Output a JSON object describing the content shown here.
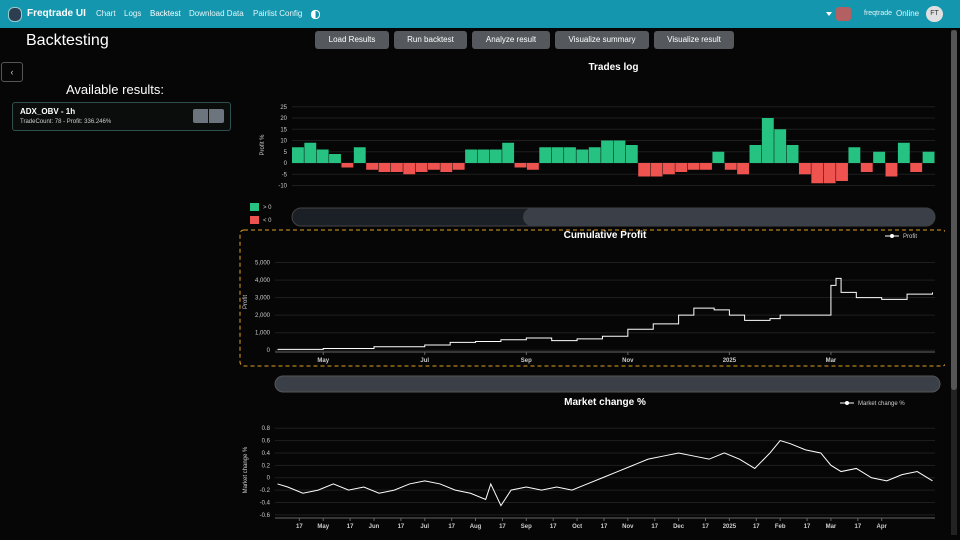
{
  "nav": {
    "brand": "Freqtrade UI",
    "links": [
      "Chart",
      "Logs",
      "Backtest",
      "Download Data",
      "Pairlist Config"
    ],
    "user": "freqtrade",
    "status": "Online",
    "avatar": "FT"
  },
  "page_title": "Backtesting",
  "buttons": [
    "Load Results",
    "Run backtest",
    "Analyze result",
    "Visualize summary",
    "Visualize result"
  ],
  "sidebar": {
    "heading": "Available results:",
    "results": [
      {
        "name": "ADX_OBV - 1h",
        "details": "TradeCount: 78 - Profit: 336.246%"
      }
    ]
  },
  "chart_data": [
    {
      "type": "bar",
      "title": "Trades log",
      "y_label": "Profit %",
      "values": [
        7,
        9,
        6,
        4,
        -2,
        7,
        -3,
        -4,
        -4,
        -5,
        -4,
        -3,
        -4,
        -3,
        6,
        6,
        6,
        9,
        -2,
        -3,
        7,
        7,
        7,
        6,
        7,
        10,
        10,
        8,
        -6,
        -6,
        -5,
        -4,
        -3,
        -3,
        5,
        -3,
        -5,
        8,
        20,
        15,
        8,
        -5,
        -9,
        -9,
        -8,
        7,
        -4,
        5,
        -6,
        9,
        -4,
        5
      ],
      "series": [
        {
          "name": "> 0",
          "color": "#26c281"
        },
        {
          "name": "< 0",
          "color": "#ef5350"
        }
      ],
      "ylim": [
        -12,
        28
      ],
      "yticks": [
        -10,
        -5,
        0,
        5,
        10,
        15,
        20,
        25
      ],
      "grid": true
    },
    {
      "type": "line",
      "title": "Cumulative Profit",
      "y_label": "Profit",
      "x": [
        4.1,
        5,
        6,
        7,
        7.5,
        8,
        8.5,
        9,
        9.5,
        10,
        10.5,
        11,
        11.5,
        12,
        12.3,
        12.7,
        13,
        13.3,
        13.8,
        14,
        14.5,
        15,
        15.1,
        15.2,
        15.5,
        16,
        16.5,
        17
      ],
      "series": [
        {
          "name": "Profit",
          "color": "#ffffff",
          "values": [
            50,
            100,
            200,
            300,
            450,
            500,
            600,
            700,
            550,
            650,
            800,
            1200,
            1500,
            2000,
            2400,
            2300,
            2000,
            1700,
            1800,
            2000,
            2000,
            3700,
            4100,
            3300,
            3000,
            2900,
            3200,
            3300
          ]
        }
      ],
      "xlim": [
        4.05,
        17.05
      ],
      "xticks": [
        {
          "value": 5,
          "label": "May"
        },
        {
          "value": 7,
          "label": "Jul"
        },
        {
          "value": 9,
          "label": "Sep"
        },
        {
          "value": 11,
          "label": "Nov"
        },
        {
          "value": 13,
          "label": "2025"
        },
        {
          "value": 15,
          "label": "Mar"
        }
      ],
      "ylim": [
        -100,
        5600
      ],
      "yticks": [
        {
          "value": 0,
          "label": "0"
        },
        {
          "value": 1000,
          "label": "1,000"
        },
        {
          "value": 2000,
          "label": "2,000"
        },
        {
          "value": 3000,
          "label": "3,000"
        },
        {
          "value": 4000,
          "label": "4,000"
        },
        {
          "value": 5000,
          "label": "5,000"
        }
      ],
      "grid": true
    },
    {
      "type": "line",
      "title": "Market change %",
      "y_label": "Market change %",
      "x": [
        4.1,
        4.3,
        4.6,
        4.9,
        5.2,
        5.5,
        5.8,
        6.1,
        6.4,
        6.7,
        7,
        7.3,
        7.6,
        7.9,
        8.2,
        8.3,
        8.5,
        8.7,
        9,
        9.3,
        9.6,
        9.9,
        10.2,
        10.5,
        10.8,
        11.1,
        11.4,
        11.7,
        12,
        12.3,
        12.6,
        12.9,
        13.2,
        13.5,
        13.8,
        14,
        14.2,
        14.5,
        14.8,
        15,
        15.2,
        15.5,
        15.8,
        16.1,
        16.4,
        16.7,
        17
      ],
      "series": [
        {
          "name": "Market change %",
          "color": "#ffffff",
          "values": [
            -0.1,
            -0.15,
            -0.25,
            -0.2,
            -0.1,
            -0.2,
            -0.15,
            -0.25,
            -0.2,
            -0.1,
            -0.05,
            -0.1,
            -0.2,
            -0.25,
            -0.35,
            -0.1,
            -0.45,
            -0.2,
            -0.15,
            -0.2,
            -0.15,
            -0.2,
            -0.1,
            0,
            0.1,
            0.2,
            0.3,
            0.35,
            0.4,
            0.35,
            0.3,
            0.4,
            0.3,
            0.15,
            0.4,
            0.6,
            0.55,
            0.45,
            0.4,
            0.2,
            0.1,
            0.15,
            0,
            -0.05,
            0.05,
            0.1,
            -0.05
          ]
        }
      ],
      "xlim": [
        4.05,
        17.05
      ],
      "xticks": [
        {
          "value": 4.53,
          "label": "17"
        },
        {
          "value": 5,
          "label": "May"
        },
        {
          "value": 5.53,
          "label": "17"
        },
        {
          "value": 6,
          "label": "Jun"
        },
        {
          "value": 6.53,
          "label": "17"
        },
        {
          "value": 7,
          "label": "Jul"
        },
        {
          "value": 7.53,
          "label": "17"
        },
        {
          "value": 8,
          "label": "Aug"
        },
        {
          "value": 8.53,
          "label": "17"
        },
        {
          "value": 9,
          "label": "Sep"
        },
        {
          "value": 9.53,
          "label": "17"
        },
        {
          "value": 10,
          "label": "Oct"
        },
        {
          "value": 10.53,
          "label": "17"
        },
        {
          "value": 11,
          "label": "Nov"
        },
        {
          "value": 11.53,
          "label": "17"
        },
        {
          "value": 12,
          "label": "Dec"
        },
        {
          "value": 12.53,
          "label": "17"
        },
        {
          "value": 13,
          "label": "2025"
        },
        {
          "value": 13.53,
          "label": "17"
        },
        {
          "value": 14,
          "label": "Feb"
        },
        {
          "value": 14.53,
          "label": "17"
        },
        {
          "value": 15,
          "label": "Mar"
        },
        {
          "value": 15.53,
          "label": "17"
        },
        {
          "value": 16,
          "label": "Apr"
        }
      ],
      "ylim": [
        -0.65,
        0.9
      ],
      "yticks": [
        -0.6,
        -0.4,
        -0.2,
        0,
        0.2,
        0.4,
        0.6,
        0.8
      ],
      "grid": true
    }
  ]
}
